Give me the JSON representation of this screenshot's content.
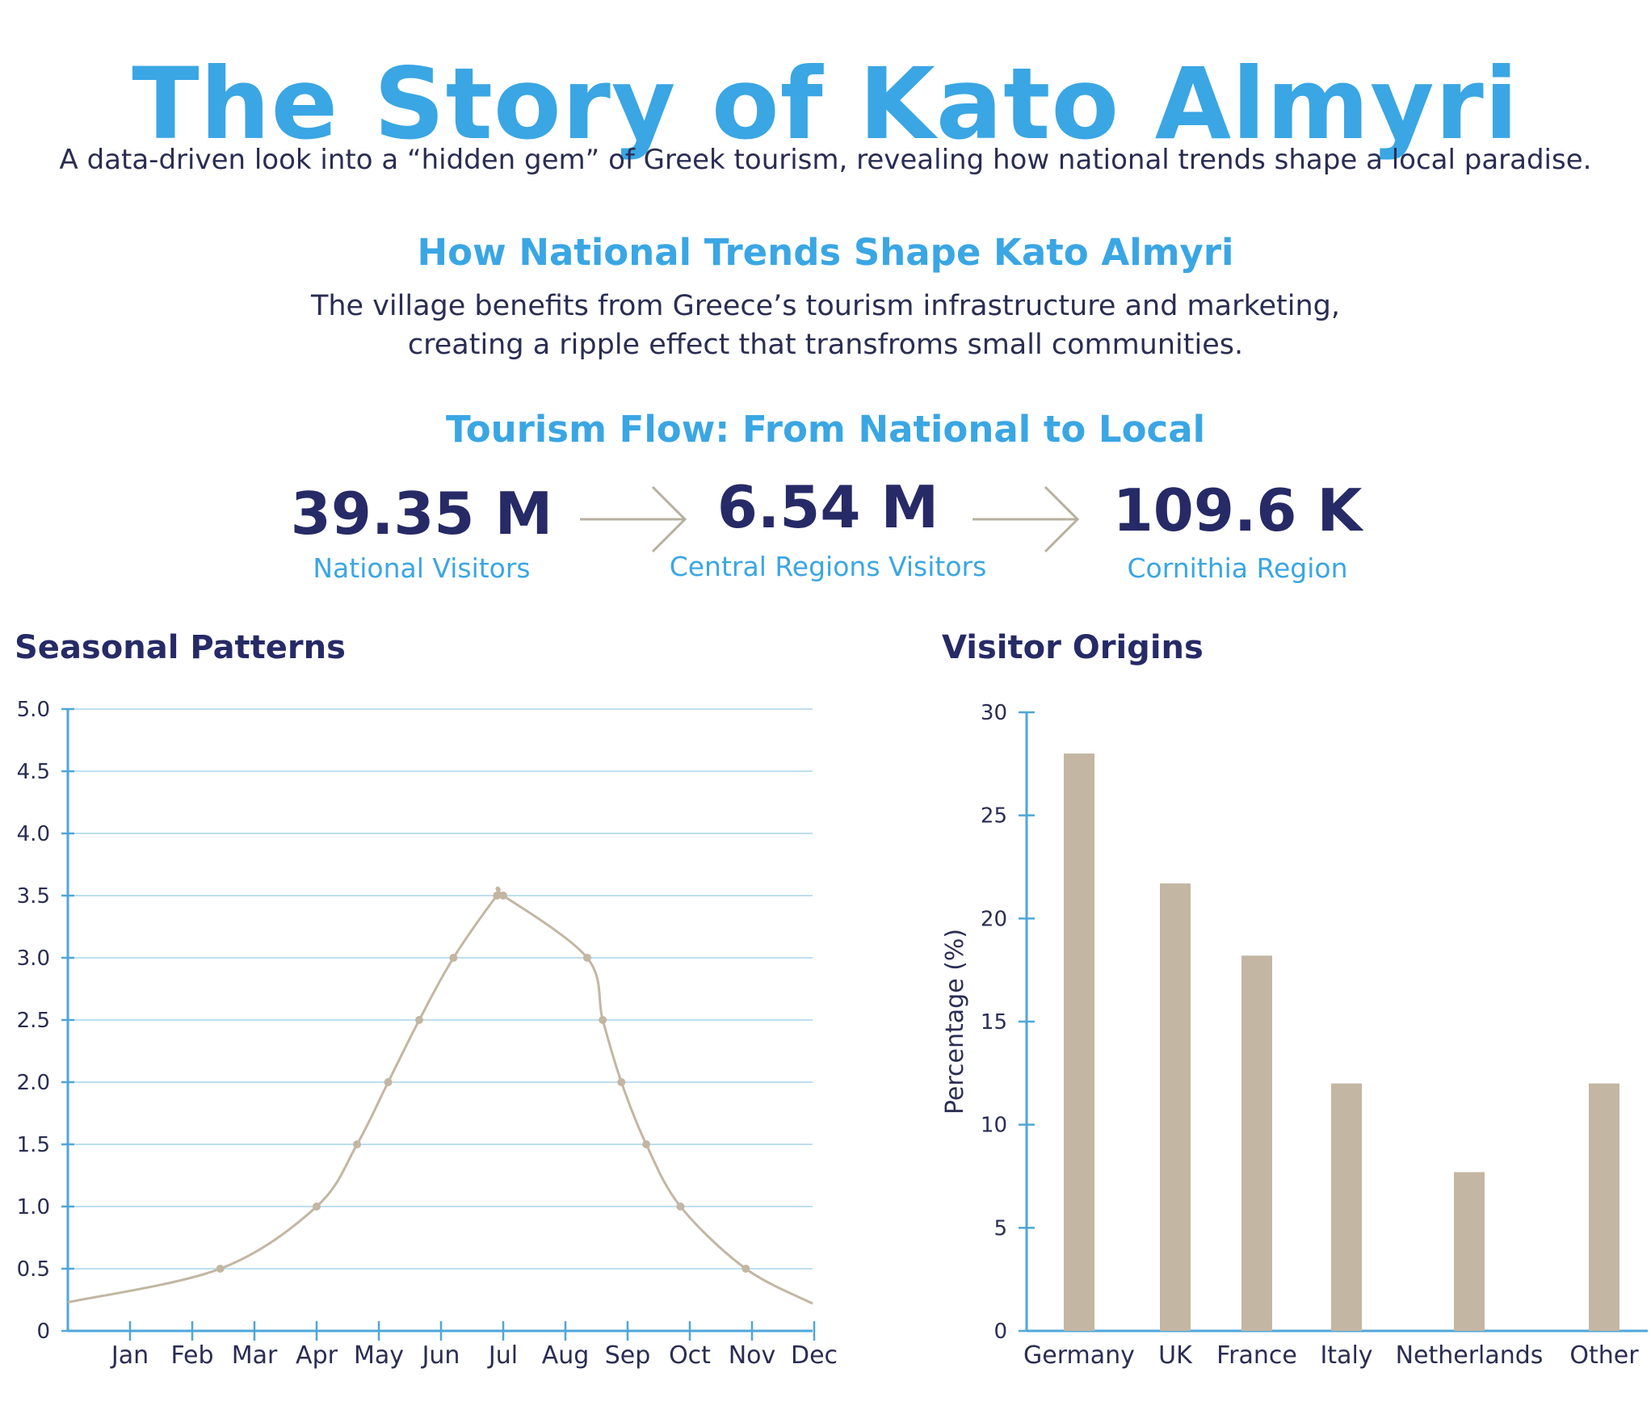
{
  "header": {
    "title": "The Story of Kato Almyri",
    "subtitle": "A data-driven look into a “hidden gem” of Greek tourism, revealing how national trends shape a local paradise."
  },
  "trends": {
    "heading": "How National Trends Shape Kato Almyri",
    "line1": "The village benefits from Greece’s tourism infrastructure and marketing,",
    "line2": "creating a ripple effect that transfroms small communities."
  },
  "flow": {
    "heading": "Tourism Flow: From National to Local",
    "stats": [
      {
        "value": "39.35 M",
        "label": "National Visitors"
      },
      {
        "value": "6.54 M",
        "label": "Central Regions Visitors"
      },
      {
        "value": "109.6 K",
        "label": "Cornithia Region"
      }
    ],
    "arrow_color": "#b7b09f"
  },
  "colors": {
    "accent": "#3aa6e4",
    "navy": "#262a66",
    "mark": "#c3b6a2",
    "axis": "#4ea6d8",
    "grid": "#a9d3ea"
  },
  "chart_data": [
    {
      "type": "line",
      "title": "Seasonal Patterns",
      "categories": [
        "Jan",
        "Feb",
        "Mar",
        "Apr",
        "May",
        "Jun",
        "Jul",
        "Aug",
        "Sep",
        "Oct",
        "Nov",
        "Dec"
      ],
      "points": [
        {
          "x": 2.45,
          "y": 0.5
        },
        {
          "x": 4.0,
          "y": 1.0
        },
        {
          "x": 4.65,
          "y": 1.5
        },
        {
          "x": 5.15,
          "y": 2.0
        },
        {
          "x": 5.65,
          "y": 2.5
        },
        {
          "x": 6.2,
          "y": 3.0
        },
        {
          "x": 6.9,
          "y": 3.5
        },
        {
          "x": 7.0,
          "y": 3.5
        },
        {
          "x": 8.35,
          "y": 3.0
        },
        {
          "x": 8.6,
          "y": 2.5
        },
        {
          "x": 8.9,
          "y": 2.0
        },
        {
          "x": 9.3,
          "y": 1.5
        },
        {
          "x": 9.85,
          "y": 1.0
        },
        {
          "x": 10.9,
          "y": 0.5
        }
      ],
      "ylim": [
        0,
        5
      ],
      "yticks": [
        "0",
        "0.5",
        "1.0",
        "1.5",
        "2.0",
        "2.5",
        "3.0",
        "3.5",
        "4.0",
        "4.5",
        "5.0"
      ],
      "grid": true,
      "xlabel": "",
      "ylabel": ""
    },
    {
      "type": "bar",
      "title": "Visitor Origins",
      "categories": [
        "Germany",
        "UK",
        "France",
        "Italy",
        "Netherlands",
        "Other"
      ],
      "values": [
        28,
        21.7,
        18.2,
        12,
        7.7,
        12
      ],
      "ylim": [
        0,
        30
      ],
      "yticks": [
        "0",
        "5",
        "10",
        "15",
        "20",
        "25",
        "30"
      ],
      "ylabel": "Percentage (%)",
      "xlabel": "",
      "grid": false
    }
  ]
}
